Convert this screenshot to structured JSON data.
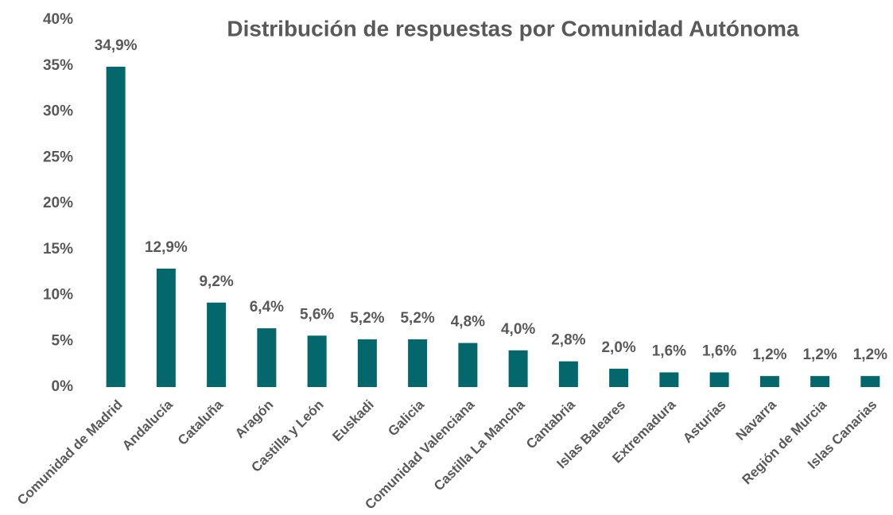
{
  "chart_data": {
    "type": "bar",
    "title": "Distribución de respuestas por Comunidad Autónoma",
    "categories": [
      "Comunidad de Madrid",
      "Andalucía",
      "Cataluña",
      "Aragón",
      "Castilla y León",
      "Euskadi",
      "Galicia",
      "Comunidad Valenciana",
      "Castilla La Mancha",
      "Cantabria",
      "Islas Baleares",
      "Extremadura",
      "Asturias",
      "Navarra",
      "Región de Murcia",
      "Islas Canarias"
    ],
    "values": [
      34.9,
      12.9,
      9.2,
      6.4,
      5.6,
      5.2,
      5.2,
      4.8,
      4.0,
      2.8,
      2.0,
      1.6,
      1.6,
      1.2,
      1.2,
      1.2
    ],
    "value_labels": [
      "34,9%",
      "12,9%",
      "9,2%",
      "6,4%",
      "5,6%",
      "5,2%",
      "5,2%",
      "4,8%",
      "4,0%",
      "2,8%",
      "2,0%",
      "1,6%",
      "1,6%",
      "1,2%",
      "1,2%",
      "1,2%"
    ],
    "color": "#04676b",
    "ylim": [
      0,
      40
    ],
    "yticks": [
      {
        "value": 0,
        "label": "0%"
      },
      {
        "value": 5,
        "label": "5%"
      },
      {
        "value": 10,
        "label": "10%"
      },
      {
        "value": 15,
        "label": "15%"
      },
      {
        "value": 20,
        "label": "20%"
      },
      {
        "value": 25,
        "label": "25%"
      },
      {
        "value": 30,
        "label": "30%"
      },
      {
        "value": 35,
        "label": "35%"
      },
      {
        "value": 40,
        "label": "40%"
      }
    ],
    "grid": false
  }
}
